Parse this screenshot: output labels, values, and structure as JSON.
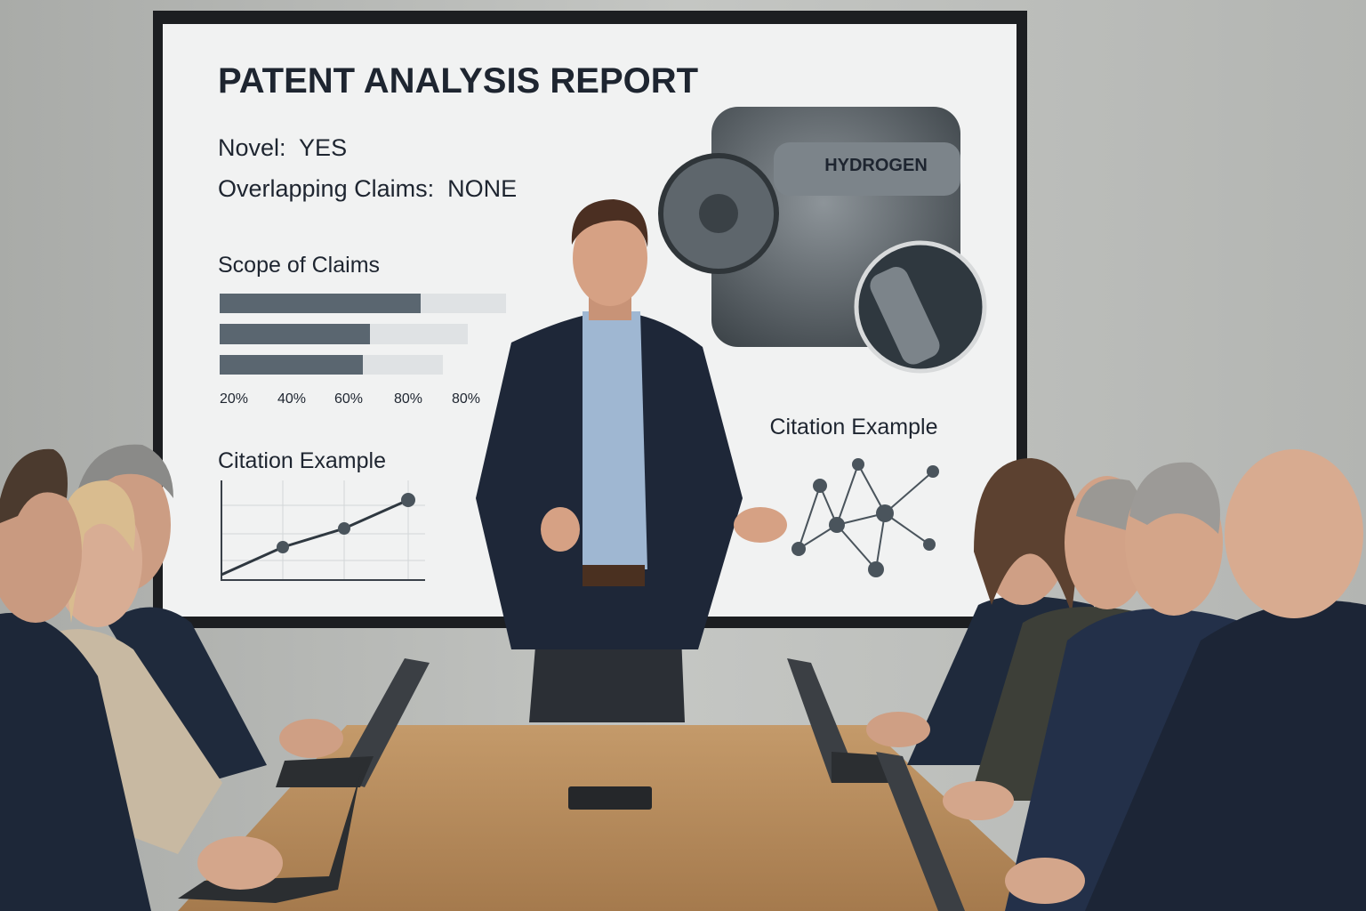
{
  "screen": {
    "title": "PATENT ANALYSIS REPORT",
    "novel": "Novel:  YES",
    "overlapping_claims": "Overlapping Claims:  NONE",
    "scope_heading": "Scope of Claims",
    "scope_axis_labels": [
      "20%",
      "40%",
      "60%",
      "80%",
      "80%"
    ],
    "citation_heading_left": "Citation Example",
    "citation_heading_right": "Citation Example",
    "engine_label": "HYDROGEN"
  }
}
